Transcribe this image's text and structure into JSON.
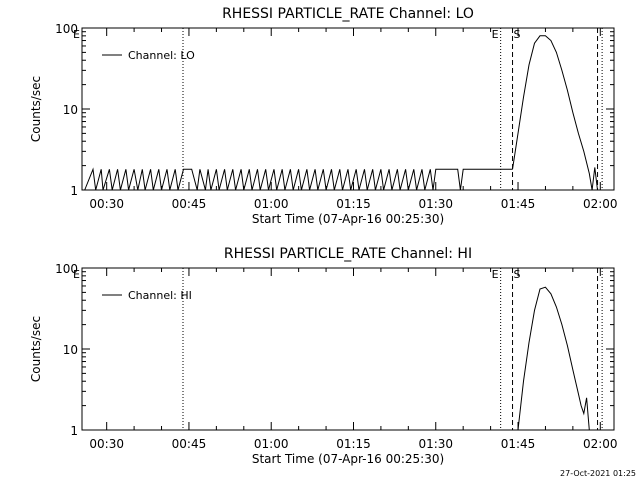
{
  "footer": {
    "timestamp": "27-Oct-2021 01:25"
  },
  "chart_data": [
    {
      "type": "line",
      "title": "RHESSI PARTICLE_RATE Channel: LO",
      "xlabel": "Start Time (07-Apr-16 00:25:30)",
      "ylabel": "Counts/sec",
      "yscale": "log",
      "ylim": [
        1,
        100
      ],
      "xlim": [
        "00:25:30",
        "02:02:30"
      ],
      "xticks": [
        "00:30",
        "00:45",
        "01:00",
        "01:15",
        "01:30",
        "01:45",
        "02:00"
      ],
      "yticks": [
        "1",
        "10",
        "100"
      ],
      "legend": {
        "position": "top-left",
        "entries": [
          "Channel: LO"
        ]
      },
      "markers": [
        {
          "label": "E",
          "time": "00:25:30",
          "style": "dotted"
        },
        {
          "label": "",
          "time": "00:43:55",
          "style": "dotted"
        },
        {
          "label": "E",
          "time": "01:41:50",
          "style": "dotted"
        },
        {
          "label": "S",
          "time": "01:44:00",
          "style": "dashed"
        },
        {
          "label": "",
          "time": "01:59:30",
          "style": "dashed"
        },
        {
          "label": "",
          "time": "02:00:20",
          "style": "dotted"
        }
      ],
      "series": [
        {
          "name": "Channel: LO",
          "segments": [
            {
              "x": [
                "00:26:00",
                "00:27:30",
                "00:28:00",
                "00:29:00",
                "00:29:20",
                "00:30:30",
                "00:31:00",
                "00:32:00",
                "00:32:30",
                "00:33:30",
                "00:34:00",
                "00:35:00",
                "00:35:40",
                "00:36:30",
                "00:37:00",
                "00:38:00",
                "00:38:30",
                "00:39:30",
                "00:40:00",
                "00:41:00",
                "00:41:30",
                "00:42:30",
                "00:43:00",
                "00:44:00",
                "00:44:40",
                "00:45:30",
                "00:46:30",
                "00:47:00",
                "00:48:00",
                "00:48:30",
                "00:49:00",
                "00:50:00",
                "00:50:30",
                "00:51:30",
                "00:52:00",
                "00:53:00",
                "00:53:30",
                "00:54:30",
                "00:55:00",
                "00:56:00",
                "00:56:30",
                "00:57:30",
                "00:58:00",
                "00:59:00",
                "00:59:30",
                "01:00:30",
                "01:01:00",
                "01:02:00",
                "01:02:30",
                "01:03:30",
                "01:04:00",
                "01:05:00",
                "01:05:30",
                "01:06:30",
                "01:07:00",
                "01:08:00",
                "01:08:30",
                "01:09:30",
                "01:10:00",
                "01:11:00",
                "01:11:30",
                "01:12:30",
                "01:13:00",
                "01:14:00",
                "01:14:30",
                "01:15:30",
                "01:16:00",
                "01:17:00",
                "01:17:30",
                "01:18:30",
                "01:19:00",
                "01:20:00",
                "01:20:30",
                "01:21:30",
                "01:22:00",
                "01:23:00",
                "01:23:30",
                "01:24:30",
                "01:25:00",
                "01:26:00",
                "01:26:30",
                "01:27:30",
                "01:28:00",
                "01:29:00",
                "01:29:30",
                "01:30:00",
                "01:31:00",
                "01:32:00",
                "01:33:00",
                "01:34:00",
                "01:34:30",
                "01:35:00",
                "01:36:00",
                "01:37:00",
                "01:38:00",
                "01:39:00",
                "01:39:30",
                "01:40:00",
                "01:41:00",
                "01:41:40",
                "01:42:00",
                "01:42:30",
                "01:43:00",
                "01:44:00"
              ],
              "y": [
                1,
                1.8,
                1,
                1.8,
                1,
                1.8,
                1,
                1.8,
                1,
                1.8,
                1,
                1.8,
                1,
                1.8,
                1,
                1.8,
                1,
                1.8,
                1,
                1.8,
                1,
                1.8,
                1,
                1.8,
                1.8,
                1.8,
                1,
                1.8,
                1,
                1.8,
                1,
                1.8,
                1,
                1.8,
                1,
                1.8,
                1,
                1.8,
                1,
                1.8,
                1,
                1.8,
                1,
                1.8,
                1,
                1.8,
                1,
                1.8,
                1,
                1.8,
                1,
                1.8,
                1,
                1.8,
                1,
                1.8,
                1,
                1.8,
                1,
                1.8,
                1,
                1.8,
                1,
                1.8,
                1,
                1.8,
                1,
                1.8,
                1,
                1.8,
                1,
                1.8,
                1,
                1.8,
                1,
                1.8,
                1,
                1.8,
                1,
                1.8,
                1,
                1.8,
                1,
                1.8,
                1,
                1.8,
                1.8,
                1.8,
                1.8,
                1.8,
                1,
                1.8,
                1.8,
                1.8,
                1.8,
                1.8,
                1.8,
                1.8,
                1.8,
                1.8,
                1.8,
                1.8,
                1.8,
                1.8
              ]
            },
            {
              "x": [
                "01:44:00",
                "01:45:00",
                "01:46:00",
                "01:47:00",
                "01:48:00",
                "01:49:00",
                "01:50:00",
                "01:51:00",
                "01:52:00",
                "01:53:00",
                "01:54:00",
                "01:55:00",
                "01:56:00",
                "01:57:00",
                "01:58:00",
                "01:58:30",
                "01:59:00",
                "01:59:30",
                "02:00:00"
              ],
              "y": [
                1.8,
                5,
                14,
                35,
                65,
                80,
                80,
                70,
                50,
                30,
                17,
                9,
                5,
                3,
                1.6,
                1,
                1.9,
                1,
                1
              ]
            }
          ]
        }
      ]
    },
    {
      "type": "line",
      "title": "RHESSI PARTICLE_RATE Channel: HI",
      "xlabel": "Start Time (07-Apr-16 00:25:30)",
      "ylabel": "Counts/sec",
      "yscale": "log",
      "ylim": [
        1,
        100
      ],
      "xlim": [
        "00:25:30",
        "02:02:30"
      ],
      "xticks": [
        "00:30",
        "00:45",
        "01:00",
        "01:15",
        "01:30",
        "01:45",
        "02:00"
      ],
      "yticks": [
        "1",
        "10",
        "100"
      ],
      "legend": {
        "position": "top-left",
        "entries": [
          "Channel: HI"
        ]
      },
      "markers": [
        {
          "label": "E",
          "time": "00:25:30",
          "style": "dotted"
        },
        {
          "label": "",
          "time": "00:43:55",
          "style": "dotted"
        },
        {
          "label": "E",
          "time": "01:41:50",
          "style": "dotted"
        },
        {
          "label": "S",
          "time": "01:44:00",
          "style": "dashed"
        },
        {
          "label": "",
          "time": "01:59:30",
          "style": "dashed"
        },
        {
          "label": "",
          "time": "02:00:20",
          "style": "dotted"
        }
      ],
      "series": [
        {
          "name": "Channel: HI",
          "segments": [
            {
              "x": [
                "01:45:00",
                "01:46:00",
                "01:47:00",
                "01:48:00",
                "01:49:00",
                "01:50:00",
                "01:51:00",
                "01:52:00",
                "01:53:00",
                "01:54:00",
                "01:55:00",
                "01:56:00",
                "01:56:30",
                "01:57:00",
                "01:57:30",
                "01:58:00"
              ],
              "y": [
                1,
                4,
                12,
                30,
                55,
                58,
                48,
                33,
                20,
                11,
                5.5,
                2.8,
                2,
                1.6,
                2.5,
                1
              ]
            }
          ]
        }
      ]
    }
  ]
}
